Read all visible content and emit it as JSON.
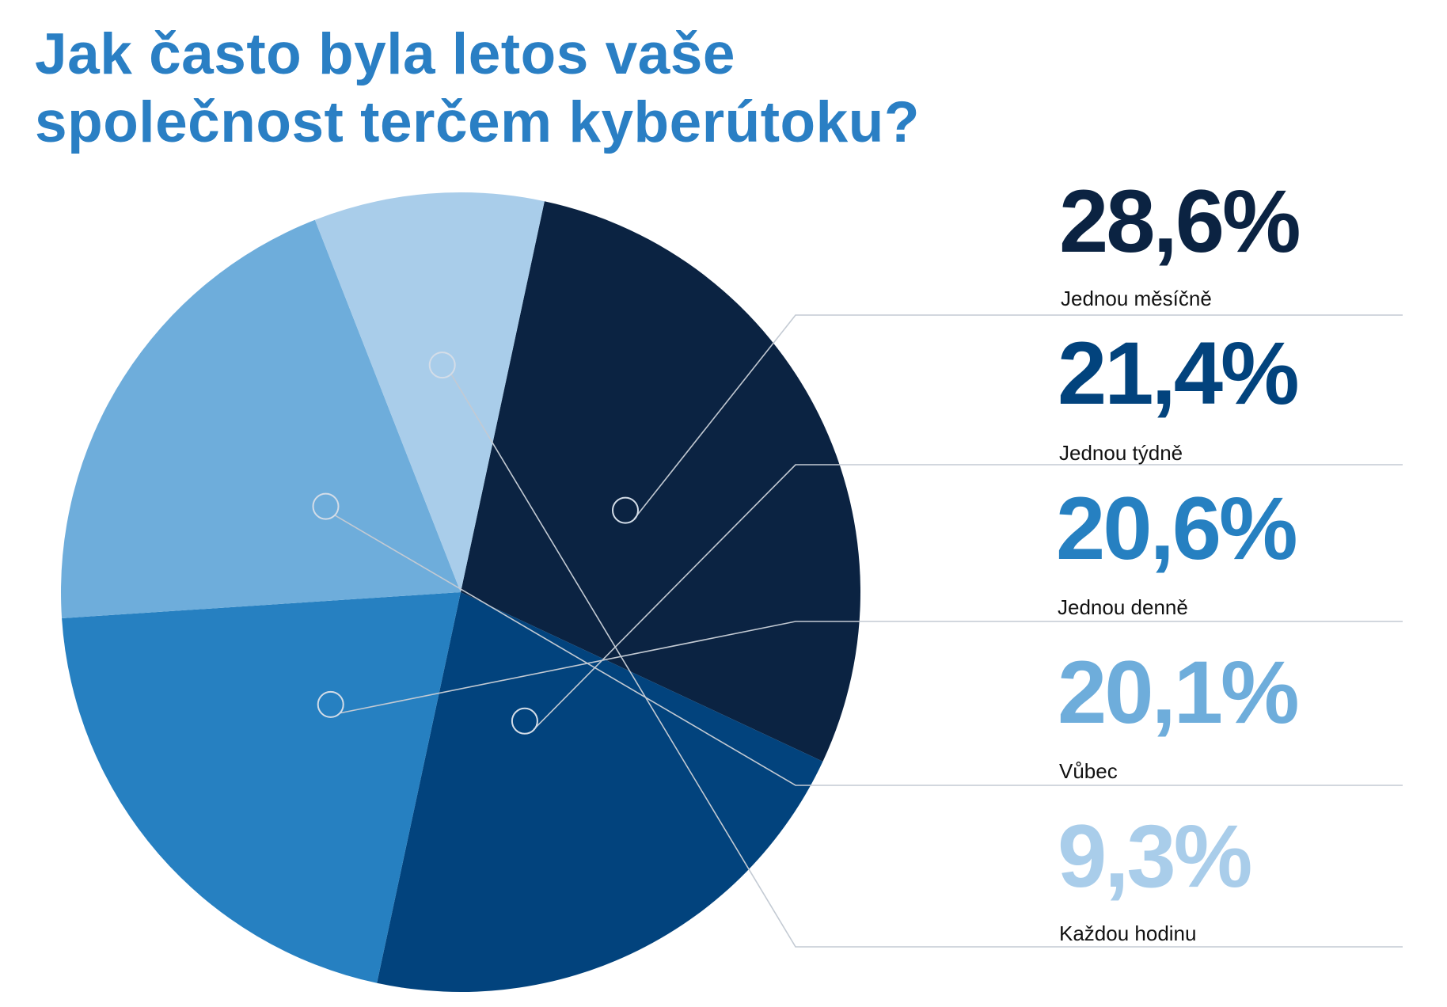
{
  "title_lines": [
    "Jak často byla letos vaše",
    "společnost terčem kyberútoku?"
  ],
  "chart_data": {
    "type": "pie",
    "title": "Jak často byla letos vaše společnost terčem kyberútoku?",
    "slices": [
      {
        "label": "Jednou měsíčně",
        "value": 28.6,
        "value_label": "28,6%",
        "color": "#0b2342"
      },
      {
        "label": "Jednou týdně",
        "value": 21.4,
        "value_label": "21,4%",
        "color": "#02437d"
      },
      {
        "label": "Jednou denně",
        "value": 20.6,
        "value_label": "20,6%",
        "color": "#2680c1"
      },
      {
        "label": "Vůbec",
        "value": 20.1,
        "value_label": "20,1%",
        "color": "#6eaddb"
      },
      {
        "label": "Každou hodinu",
        "value": 9.3,
        "value_label": "9,3%",
        "color": "#a9cdea"
      }
    ],
    "legend_position": "right"
  }
}
